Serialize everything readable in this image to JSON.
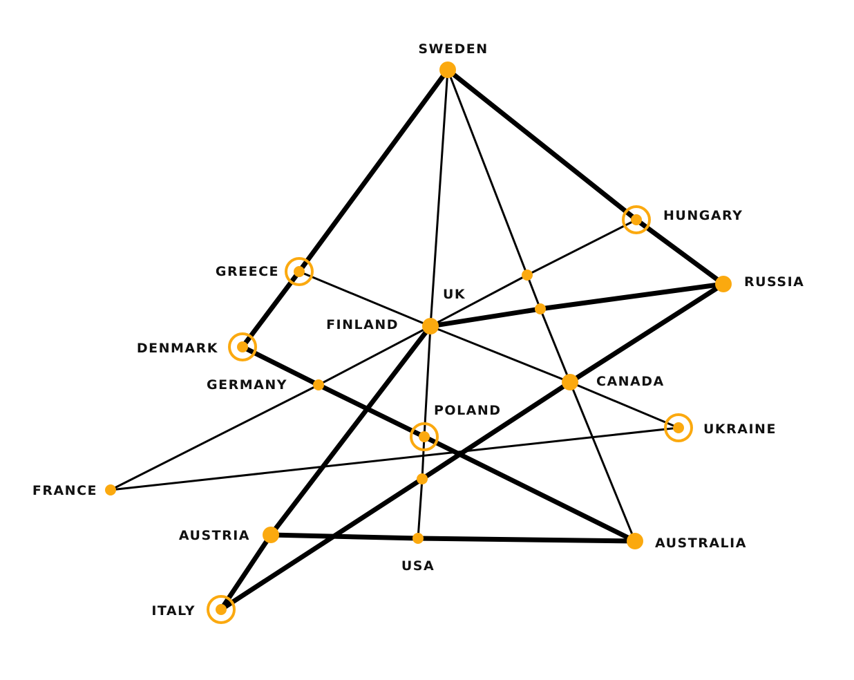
{
  "colors": {
    "node": "#FBA90F",
    "edge": "#000000",
    "label": "#111111"
  },
  "nodes": [
    {
      "id": "sweden",
      "label": "SWEDEN",
      "size": "large",
      "ringed": false
    },
    {
      "id": "hungary",
      "label": "HUNGARY",
      "size": "small",
      "ringed": true
    },
    {
      "id": "russia",
      "label": "RUSSIA",
      "size": "large",
      "ringed": false
    },
    {
      "id": "greece",
      "label": "GREECE",
      "size": "small",
      "ringed": true
    },
    {
      "id": "uk",
      "label": "UK",
      "size": "large",
      "ringed": false
    },
    {
      "id": "finland",
      "label": "FINLAND",
      "size": "none",
      "ringed": false
    },
    {
      "id": "denmark",
      "label": "DENMARK",
      "size": "small",
      "ringed": true
    },
    {
      "id": "germany",
      "label": "GERMANY",
      "size": "small",
      "ringed": false
    },
    {
      "id": "canada",
      "label": "CANADA",
      "size": "large",
      "ringed": false
    },
    {
      "id": "poland",
      "label": "POLAND",
      "size": "small",
      "ringed": true
    },
    {
      "id": "ukraine",
      "label": "UKRAINE",
      "size": "small",
      "ringed": true
    },
    {
      "id": "france",
      "label": "FRANCE",
      "size": "small",
      "ringed": false
    },
    {
      "id": "austria",
      "label": "AUSTRIA",
      "size": "large",
      "ringed": false
    },
    {
      "id": "usa",
      "label": "USA",
      "size": "small",
      "ringed": false
    },
    {
      "id": "australia",
      "label": "AUSTRALIA",
      "size": "large",
      "ringed": false
    },
    {
      "id": "italy",
      "label": "ITALY",
      "size": "small",
      "ringed": true
    },
    {
      "id": "junction_a",
      "label": "",
      "size": "small",
      "ringed": false
    },
    {
      "id": "junction_b",
      "label": "",
      "size": "small",
      "ringed": false
    },
    {
      "id": "junction_c",
      "label": "",
      "size": "small",
      "ringed": false
    }
  ],
  "edges": [
    {
      "from": "sweden",
      "to": "greece",
      "weight": "heavy"
    },
    {
      "from": "greece",
      "to": "denmark",
      "weight": "heavy"
    },
    {
      "from": "sweden",
      "to": "hungary",
      "weight": "heavy"
    },
    {
      "from": "hungary",
      "to": "russia",
      "weight": "heavy"
    },
    {
      "from": "sweden",
      "to": "uk",
      "weight": "light"
    },
    {
      "from": "sweden",
      "to": "junction_a",
      "weight": "light"
    },
    {
      "from": "junction_a",
      "to": "junction_b",
      "weight": "light"
    },
    {
      "from": "junction_b",
      "to": "canada",
      "weight": "light"
    },
    {
      "from": "canada",
      "to": "australia",
      "weight": "light"
    },
    {
      "from": "uk",
      "to": "junction_b",
      "weight": "heavy"
    },
    {
      "from": "junction_b",
      "to": "russia",
      "weight": "heavy"
    },
    {
      "from": "russia",
      "to": "canada",
      "weight": "heavy"
    },
    {
      "from": "canada",
      "to": "junction_c",
      "weight": "heavy"
    },
    {
      "from": "junction_c",
      "to": "italy",
      "weight": "heavy"
    },
    {
      "from": "greece",
      "to": "uk",
      "weight": "light"
    },
    {
      "from": "uk",
      "to": "canada",
      "weight": "light"
    },
    {
      "from": "canada",
      "to": "ukraine",
      "weight": "light"
    },
    {
      "from": "uk",
      "to": "austria",
      "weight": "heavy"
    },
    {
      "from": "austria",
      "to": "italy",
      "weight": "heavy"
    },
    {
      "from": "uk",
      "to": "poland",
      "weight": "light"
    },
    {
      "from": "poland",
      "to": "junction_c",
      "weight": "light"
    },
    {
      "from": "junction_c",
      "to": "usa",
      "weight": "light"
    },
    {
      "from": "hungary",
      "to": "junction_a",
      "weight": "light"
    },
    {
      "from": "junction_a",
      "to": "uk",
      "weight": "light"
    },
    {
      "from": "uk",
      "to": "germany",
      "weight": "light"
    },
    {
      "from": "germany",
      "to": "france",
      "weight": "light"
    },
    {
      "from": "denmark",
      "to": "germany",
      "weight": "heavy"
    },
    {
      "from": "germany",
      "to": "poland",
      "weight": "heavy"
    },
    {
      "from": "poland",
      "to": "australia",
      "weight": "heavy"
    },
    {
      "from": "france",
      "to": "ukraine",
      "weight": "light"
    },
    {
      "from": "austria",
      "to": "usa",
      "weight": "heavy"
    },
    {
      "from": "usa",
      "to": "australia",
      "weight": "heavy"
    }
  ]
}
